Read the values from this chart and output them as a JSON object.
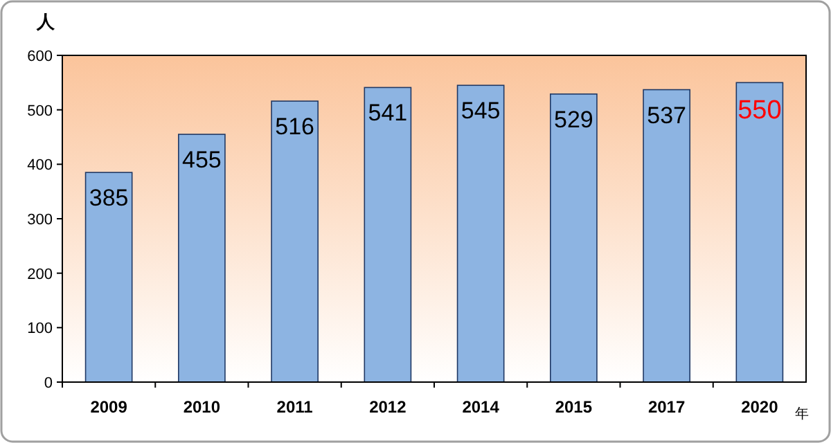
{
  "chart_data": {
    "type": "bar",
    "ylabel": "人",
    "xlabel": "年",
    "categories": [
      "2009",
      "2010",
      "2011",
      "2012",
      "2014",
      "2015",
      "2017",
      "2020"
    ],
    "values": [
      385,
      455,
      516,
      541,
      545,
      529,
      537,
      550
    ],
    "color": "#8db4e2",
    "ylim": [
      0,
      600
    ],
    "yticks": [
      0,
      100,
      200,
      300,
      400,
      500,
      600
    ],
    "data_labels": true,
    "grid": false
  }
}
